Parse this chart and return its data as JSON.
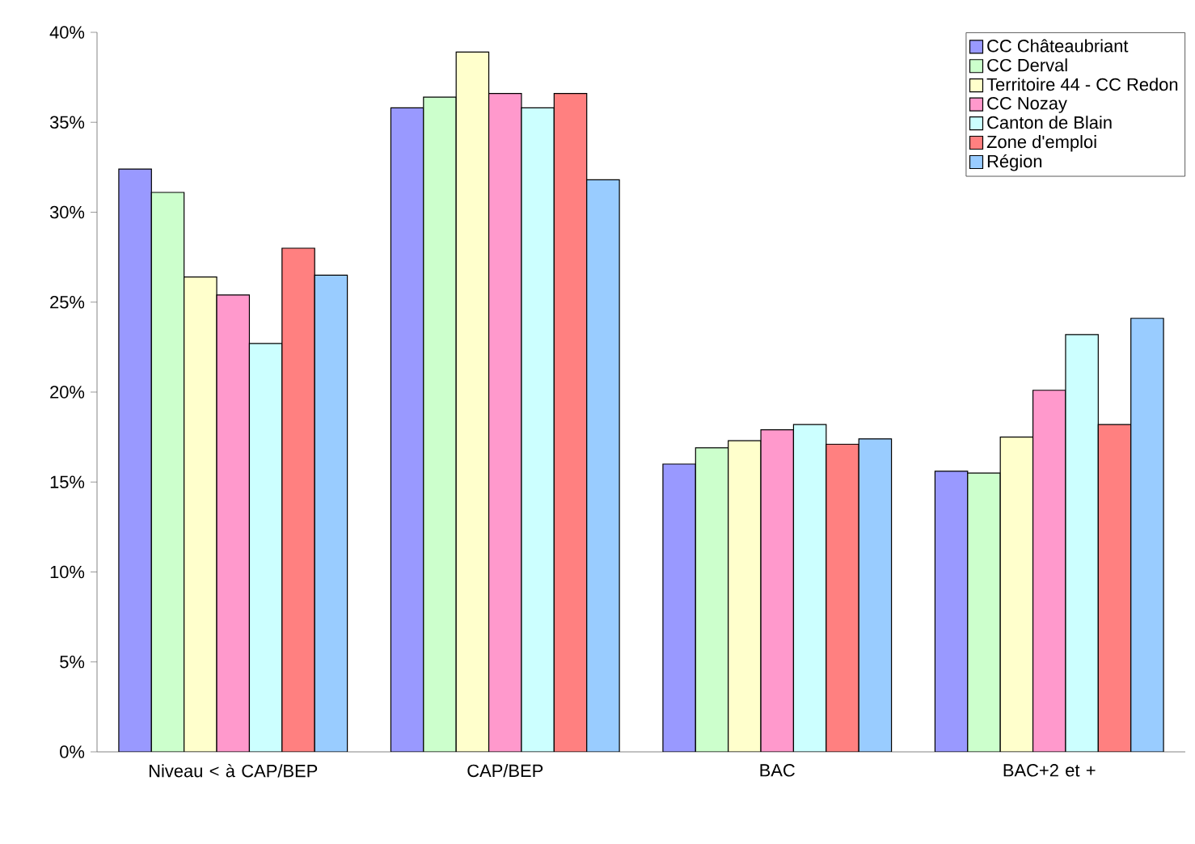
{
  "chart_data": {
    "type": "bar",
    "categories": [
      "Niveau < à CAP/BEP",
      "CAP/BEP",
      "BAC",
      "BAC+2 et +"
    ],
    "series": [
      {
        "name": "CC Châteaubriant",
        "color": "#9999ff",
        "values": [
          32.4,
          35.8,
          16.0,
          15.6
        ]
      },
      {
        "name": "CC Derval",
        "color": "#ccffcc",
        "values": [
          31.1,
          36.4,
          16.9,
          15.5
        ]
      },
      {
        "name": "Territoire 44 - CC Redon",
        "color": "#ffffcc",
        "values": [
          26.4,
          38.9,
          17.3,
          17.5
        ]
      },
      {
        "name": "CC Nozay",
        "color": "#ff99cc",
        "values": [
          25.4,
          36.6,
          17.9,
          20.1
        ]
      },
      {
        "name": "Canton de Blain",
        "color": "#ccffff",
        "values": [
          22.7,
          35.8,
          18.2,
          23.2
        ]
      },
      {
        "name": "Zone d'emploi",
        "color": "#ff8080",
        "values": [
          28.0,
          36.6,
          17.1,
          18.2
        ]
      },
      {
        "name": "Région",
        "color": "#99ccff",
        "values": [
          26.5,
          31.8,
          17.4,
          24.1
        ]
      }
    ],
    "ylim": [
      0,
      40
    ],
    "yticks": [
      {
        "value": 0,
        "label": "0%"
      },
      {
        "value": 5,
        "label": "5%"
      },
      {
        "value": 10,
        "label": "10%"
      },
      {
        "value": 15,
        "label": "15%"
      },
      {
        "value": 20,
        "label": "20%"
      },
      {
        "value": 25,
        "label": "25%"
      },
      {
        "value": 30,
        "label": "30%"
      },
      {
        "value": 35,
        "label": "35%"
      },
      {
        "value": 40,
        "label": "40%"
      }
    ],
    "grid": false,
    "legend": "top right"
  }
}
